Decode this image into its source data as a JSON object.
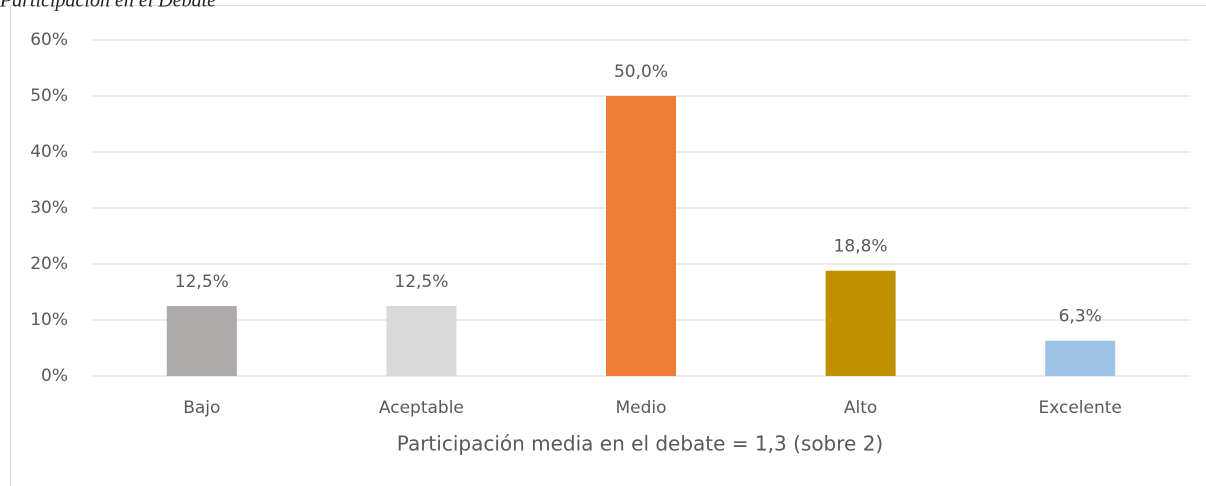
{
  "chart_data": {
    "type": "bar",
    "title": "Participación en el Debate",
    "x_label": "Participación media en el debate = 1,3 (sobre 2)",
    "categories": [
      "Bajo",
      "Aceptable",
      "Medio",
      "Alto",
      "Excelente"
    ],
    "values": [
      12.5,
      12.5,
      50.0,
      18.8,
      6.3
    ],
    "value_labels": [
      "12,5%",
      "12,5%",
      "50,0%",
      "18,8%",
      "6,3%"
    ],
    "colors": [
      "#aeaaaa",
      "#d9d9d9",
      "#ed7d31",
      "#bf9000",
      "#9dc3e6"
    ],
    "ylim": [
      0,
      60
    ],
    "yticks": [
      {
        "value": 0,
        "label": "0%"
      },
      {
        "value": 10,
        "label": "10%"
      },
      {
        "value": 20,
        "label": "20%"
      },
      {
        "value": 30,
        "label": "30%"
      },
      {
        "value": 40,
        "label": "40%"
      },
      {
        "value": 50,
        "label": "50%"
      },
      {
        "value": 60,
        "label": "60%"
      }
    ],
    "grid": true
  }
}
